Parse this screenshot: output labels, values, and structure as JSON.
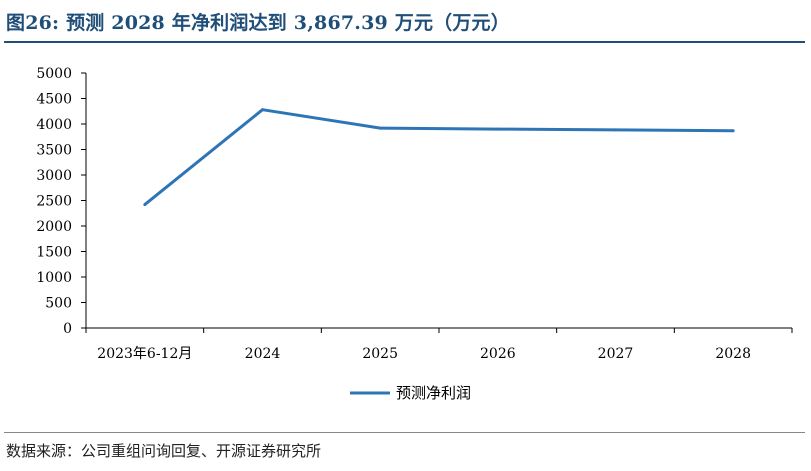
{
  "title": "图26:  预测 2028 年净利润达到 3,867.39  万元（万元）",
  "source": "数据来源：公司重组问询回复、开源证券研究所",
  "chart_data": {
    "type": "line",
    "title": "",
    "xlabel": "",
    "ylabel": "",
    "categories": [
      "2023年6-12月",
      "2024",
      "2025",
      "2026",
      "2027",
      "2028"
    ],
    "ylim": [
      0,
      5000
    ],
    "yticks": [
      0,
      500,
      1000,
      1500,
      2000,
      2500,
      3000,
      3500,
      4000,
      4500,
      5000
    ],
    "grid": false,
    "legend_position": "bottom",
    "series": [
      {
        "name": "预测净利润",
        "color": "#2e75b6",
        "values": [
          2420,
          4280,
          3920,
          3900,
          3885,
          3867.39
        ]
      }
    ]
  }
}
